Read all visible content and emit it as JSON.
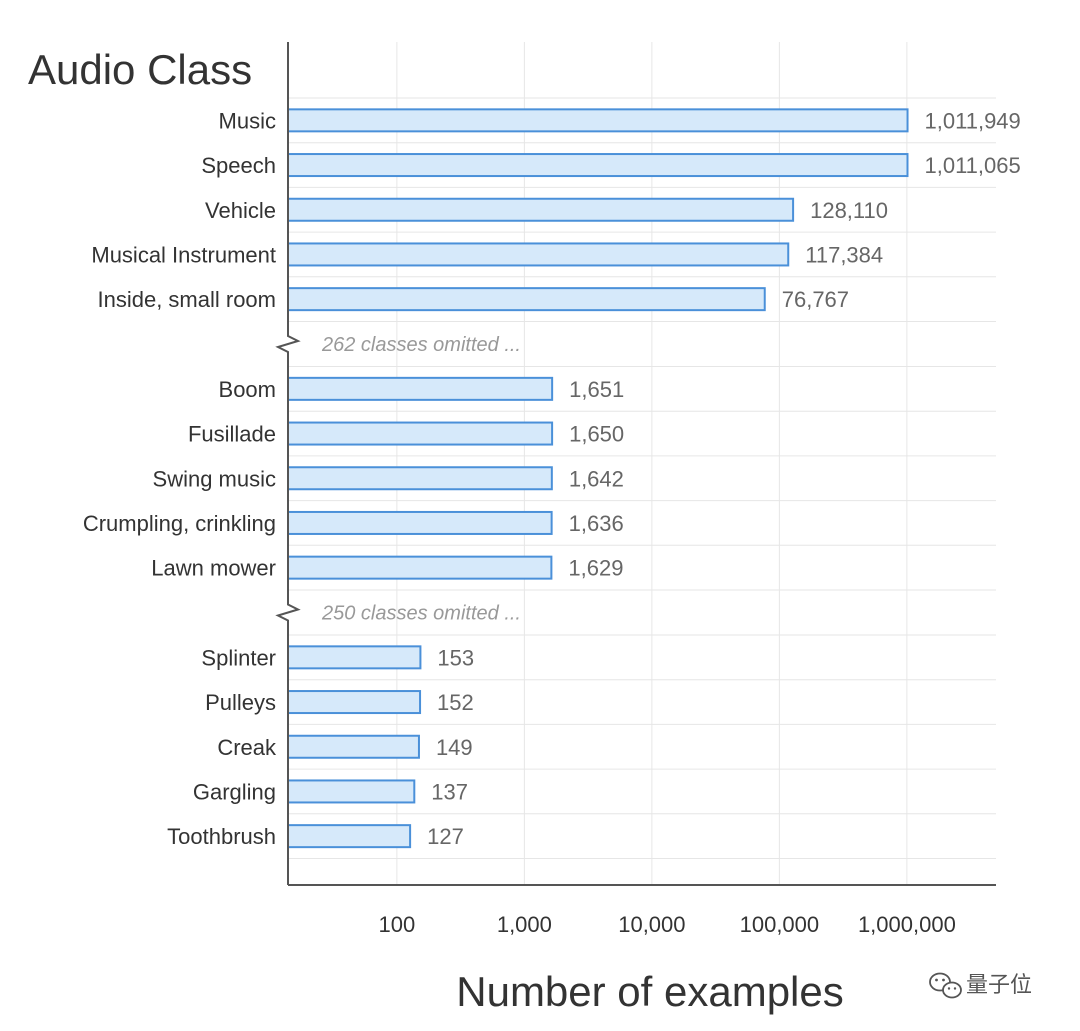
{
  "chart_data": {
    "type": "bar",
    "orientation": "horizontal",
    "x_scale": "log",
    "xlim": [
      14,
      5000000
    ],
    "ylabel": "Audio Class",
    "xlabel": "Number of examples",
    "x_ticks": [
      {
        "value": 100,
        "label": "100"
      },
      {
        "value": 1000,
        "label": "1,000"
      },
      {
        "value": 10000,
        "label": "10,000"
      },
      {
        "value": 100000,
        "label": "100,000"
      },
      {
        "value": 1000000,
        "label": "1,000,000"
      }
    ],
    "grid": true,
    "groups": [
      {
        "rows": [
          {
            "label": "Music",
            "value": 1011949,
            "value_label": "1,011,949"
          },
          {
            "label": "Speech",
            "value": 1011065,
            "value_label": "1,011,065"
          },
          {
            "label": "Vehicle",
            "value": 128110,
            "value_label": "128,110"
          },
          {
            "label": "Musical Instrument",
            "value": 117384,
            "value_label": "117,384"
          },
          {
            "label": "Inside, small room",
            "value": 76767,
            "value_label": "76,767"
          }
        ]
      },
      {
        "omitted_note": "262 classes omitted ...",
        "rows": [
          {
            "label": "Boom",
            "value": 1651,
            "value_label": "1,651"
          },
          {
            "label": "Fusillade",
            "value": 1650,
            "value_label": "1,650"
          },
          {
            "label": "Swing music",
            "value": 1642,
            "value_label": "1,642"
          },
          {
            "label": "Crumpling, crinkling",
            "value": 1636,
            "value_label": "1,636"
          },
          {
            "label": "Lawn mower",
            "value": 1629,
            "value_label": "1,629"
          }
        ]
      },
      {
        "omitted_note": "250 classes omitted ...",
        "rows": [
          {
            "label": "Splinter",
            "value": 153,
            "value_label": "153"
          },
          {
            "label": "Pulleys",
            "value": 152,
            "value_label": "152"
          },
          {
            "label": "Creak",
            "value": 149,
            "value_label": "149"
          },
          {
            "label": "Gargling",
            "value": 137,
            "value_label": "137"
          },
          {
            "label": "Toothbrush",
            "value": 127,
            "value_label": "127"
          }
        ]
      }
    ],
    "colors": {
      "bar_fill": "#d6e9fa",
      "bar_stroke": "#4a90d9"
    }
  },
  "watermark": {
    "text": "量子位",
    "icon": "wechat-icon"
  }
}
